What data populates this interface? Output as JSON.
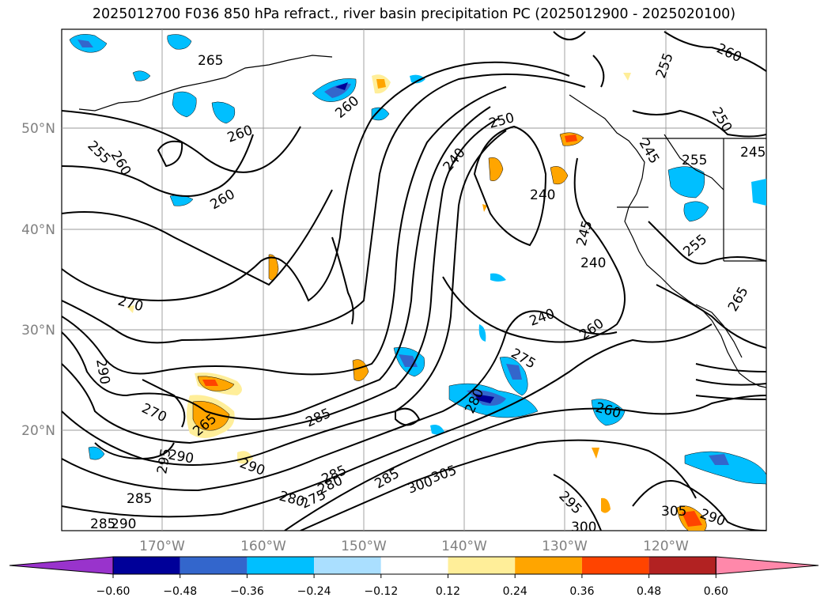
{
  "title": "2025012700 F036 850 hPa refract., river basin precipitation PC (2025012900 - 2025020100)",
  "map": {
    "lat_labels": [
      "50°N",
      "40°N",
      "30°N",
      "20°N"
    ],
    "lon_labels": [
      "170°W",
      "160°W",
      "150°W",
      "140°W",
      "130°W",
      "120°W"
    ]
  },
  "contour_labels": [
    "265",
    "260",
    "260",
    "255",
    "260",
    "260",
    "250",
    "240",
    "240",
    "255",
    "260",
    "250",
    "245",
    "255",
    "245",
    "240",
    "245",
    "255",
    "265",
    "270",
    "240",
    "260",
    "275",
    "290",
    "270",
    "285",
    "280",
    "265",
    "260",
    "290",
    "295",
    "290",
    "285",
    "280",
    "275",
    "280",
    "285",
    "300",
    "305",
    "295",
    "300",
    "305",
    "290",
    "285",
    "285",
    "290"
  ],
  "colorbar": {
    "ticks": [
      "−0.60",
      "−0.48",
      "−0.36",
      "−0.24",
      "−0.12",
      "0.12",
      "0.24",
      "0.36",
      "0.48",
      "0.60"
    ],
    "colors": [
      "#9933cc",
      "#000099",
      "#3366cc",
      "#00bfff",
      "#aadfff",
      "#ffffff",
      "#ffee99",
      "#ffa500",
      "#ff4400",
      "#b22222",
      "#ff88aa"
    ]
  },
  "colors": {
    "grid": "#999999",
    "contour": "#000000",
    "axis_label": "#808080"
  }
}
